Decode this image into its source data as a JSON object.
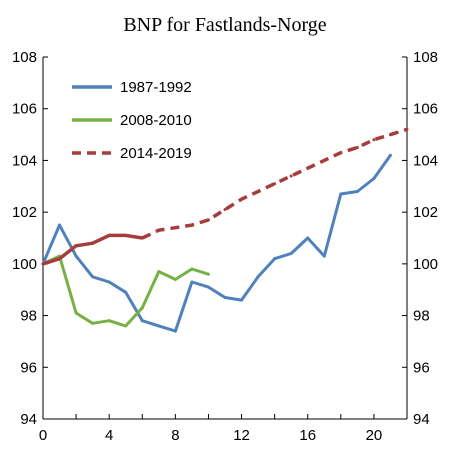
{
  "chart_data": {
    "type": "line",
    "title": "BNP for Fastlands-Norge",
    "xlabel": "",
    "ylabel": "",
    "xlim": [
      0,
      22
    ],
    "ylim": [
      94,
      108
    ],
    "x_ticks": [
      0,
      4,
      8,
      12,
      16,
      20
    ],
    "y_ticks": [
      94,
      96,
      98,
      100,
      102,
      104,
      106,
      108
    ],
    "y_ticks_right": [
      94,
      96,
      98,
      100,
      102,
      104,
      106,
      108
    ],
    "grid": false,
    "legend_position": "top-left",
    "series": [
      {
        "name": "1987-1992",
        "color": "#4f81bd",
        "dash": "solid",
        "x": [
          0,
          1,
          2,
          3,
          4,
          5,
          6,
          7,
          8,
          9,
          10,
          11,
          12,
          13,
          14,
          15,
          16,
          17,
          18,
          19,
          20,
          21
        ],
        "values": [
          100.0,
          101.5,
          100.3,
          99.5,
          99.3,
          98.9,
          97.8,
          97.6,
          97.4,
          99.3,
          99.1,
          98.7,
          98.6,
          99.5,
          100.2,
          100.4,
          101.0,
          100.3,
          102.7,
          102.8,
          103.3,
          104.2
        ]
      },
      {
        "name": "2008-2010",
        "color": "#77b145",
        "dash": "solid",
        "x": [
          0,
          1,
          2,
          3,
          4,
          5,
          6,
          7,
          8,
          9,
          10
        ],
        "values": [
          100.0,
          100.3,
          98.1,
          97.7,
          97.8,
          97.6,
          98.3,
          99.7,
          99.4,
          99.8,
          99.6
        ]
      },
      {
        "name": "2014-2019",
        "color": "#a63c3c",
        "dash": "mixed",
        "solid_until_x": 6,
        "x": [
          0,
          1,
          2,
          3,
          4,
          5,
          6,
          7,
          8,
          9,
          10,
          11,
          12,
          13,
          14,
          15,
          16,
          17,
          18,
          19,
          20,
          21,
          22
        ],
        "values": [
          100.0,
          100.2,
          100.7,
          100.8,
          101.1,
          101.1,
          101.0,
          101.3,
          101.4,
          101.5,
          101.7,
          102.1,
          102.5,
          102.8,
          103.1,
          103.4,
          103.7,
          104.0,
          104.3,
          104.5,
          104.8,
          105.0,
          105.2
        ]
      }
    ]
  }
}
